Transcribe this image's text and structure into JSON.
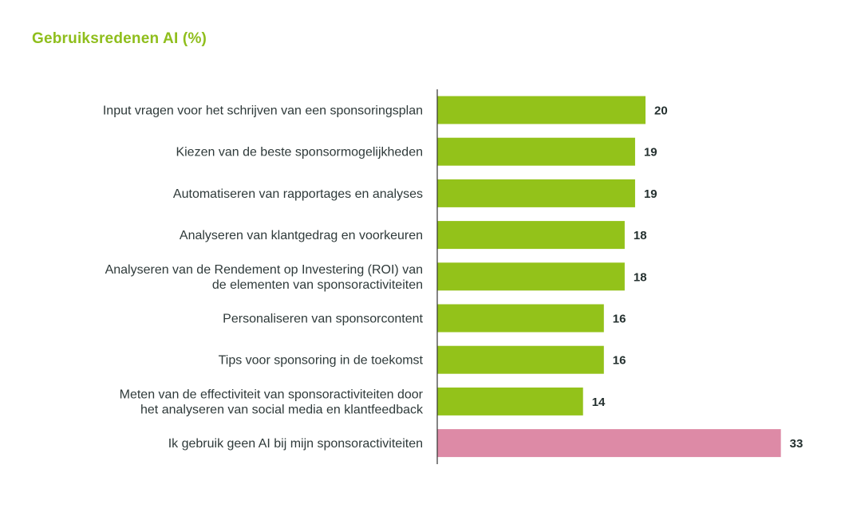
{
  "chart_data": {
    "type": "bar",
    "orientation": "horizontal",
    "title": "Gebruiksredenen AI (%)",
    "xlabel": "",
    "ylabel": "",
    "xlim": [
      0,
      33
    ],
    "grid": false,
    "colors": {
      "title": "#8fbe1c",
      "default_bar": "#93c21a",
      "highlight_bar": "#dd8aa6",
      "axis": "#333333",
      "label_text": "#2f3a3a",
      "value_text": "#24302f"
    },
    "categories": [
      [
        "Input vragen voor het schrijven van een sponsoringsplan"
      ],
      [
        "Kiezen van de beste sponsormogelijkheden"
      ],
      [
        "Automatiseren van rapportages en analyses"
      ],
      [
        "Analyseren van klantgedrag en voorkeuren"
      ],
      [
        "Analyseren van de Rendement op Investering (ROI) van",
        "de elementen van sponsoractiviteiten"
      ],
      [
        "Personaliseren van sponsorcontent"
      ],
      [
        "Tips voor sponsoring in de toekomst"
      ],
      [
        "Meten van de effectiviteit van sponsoractiviteiten door",
        "het analyseren van social media en klantfeedback"
      ],
      [
        "Ik gebruik geen AI bij mijn sponsoractiviteiten"
      ]
    ],
    "values": [
      20,
      19,
      19,
      18,
      18,
      16,
      16,
      14,
      33
    ],
    "highlighted": [
      false,
      false,
      false,
      false,
      false,
      false,
      false,
      false,
      true
    ]
  }
}
